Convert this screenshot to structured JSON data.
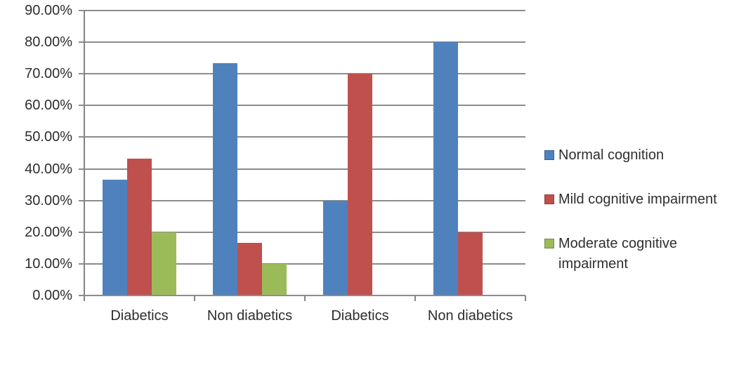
{
  "chart_data": {
    "type": "bar",
    "title": "",
    "xlabel": "",
    "ylabel": "",
    "categories": [
      "Diabetics",
      "Non diabetics",
      "Diabetics",
      "Non diabetics"
    ],
    "series": [
      {
        "name": "Normal cognition",
        "color": "#4f81bd",
        "values": [
          36.67,
          73.33,
          30.0,
          80.0
        ]
      },
      {
        "name": "Mild cognitive impairment",
        "color": "#c0504d",
        "values": [
          43.33,
          16.67,
          70.0,
          20.0
        ]
      },
      {
        "name": "Moderate cognitive impairment",
        "color": "#9bbb59",
        "values": [
          20.0,
          10.0,
          0,
          0
        ]
      }
    ],
    "ylim": [
      0,
      90
    ],
    "ytick_step": 10,
    "ytick_labels": [
      "0.00%",
      "10.00%",
      "20.00%",
      "30.00%",
      "40.00%",
      "50.00%",
      "60.00%",
      "70.00%",
      "80.00%",
      "90.00%"
    ],
    "grid": true,
    "legend_position": "right"
  },
  "colors": {
    "gridline": "#8c8c8c",
    "axis": "#848484",
    "text": "#2e2e2e",
    "background": "#ffffff"
  }
}
